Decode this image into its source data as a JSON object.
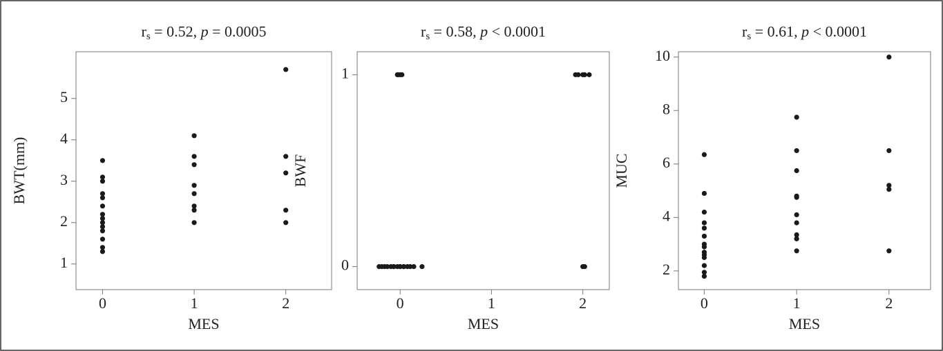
{
  "chart_data": [
    {
      "type": "scatter",
      "title": [
        "r",
        "s",
        " = 0.52, ",
        "p",
        " = 0.0005"
      ],
      "xlabel": "MES",
      "ylabel": "BWT(mm)",
      "color": "#1a1a1a",
      "x": [
        0,
        0,
        0,
        0,
        0,
        0,
        0,
        0,
        0,
        0,
        0,
        0,
        0,
        0,
        1,
        1,
        1,
        1,
        1,
        1,
        1,
        1,
        2,
        2,
        2,
        2,
        2
      ],
      "y": [
        3.5,
        3.1,
        3.0,
        2.7,
        2.6,
        2.4,
        2.2,
        2.1,
        2.0,
        1.9,
        1.8,
        1.6,
        1.4,
        1.3,
        4.1,
        3.6,
        3.4,
        2.9,
        2.7,
        2.4,
        2.3,
        2.0,
        5.7,
        3.6,
        3.2,
        2.3,
        2.0
      ],
      "xlim": [
        -0.29,
        2.5
      ],
      "ylim": [
        0.38,
        6.13
      ],
      "xticks": [
        0,
        1,
        2
      ],
      "yticks": [
        1,
        2,
        3,
        4,
        5
      ]
    },
    {
      "type": "scatter",
      "title": [
        "r",
        "s",
        " = 0.58, ",
        "p",
        " < 0.0001"
      ],
      "xlabel": "MES",
      "ylabel": "BWF",
      "color": "#1a1a1a",
      "x": [
        -0.23,
        -0.2,
        -0.17,
        -0.14,
        -0.1,
        -0.07,
        0,
        0.04,
        0.08,
        0.11,
        0.15,
        0.24,
        -0.02,
        -0.03,
        0,
        0.02,
        -0.07,
        -0.03,
        0,
        0.04,
        1.92,
        1.95,
        2.0,
        2.02,
        2.07,
        2.0,
        2.02
      ],
      "y": [
        0,
        0,
        0,
        0,
        0,
        0,
        0,
        0,
        0,
        0,
        0,
        0,
        1,
        1,
        1,
        1,
        0,
        0,
        0,
        0,
        1,
        1,
        1,
        1,
        1,
        0,
        0
      ],
      "xlim": [
        -0.47,
        2.29
      ],
      "ylim": [
        -0.12,
        1.12
      ],
      "xticks": [
        0,
        1,
        2
      ],
      "yticks": [
        0,
        1
      ]
    },
    {
      "type": "scatter",
      "title": [
        "r",
        "s",
        " = 0.61, ",
        "p",
        " < 0.0001"
      ],
      "xlabel": "MES",
      "ylabel": "MUC",
      "color": "#1a1a1a",
      "x": [
        0,
        0,
        0,
        0,
        0,
        0,
        0,
        0,
        0,
        0,
        0,
        0,
        0,
        0,
        1,
        1,
        1,
        1,
        1,
        1,
        1,
        1,
        1,
        1,
        2,
        2,
        2,
        2,
        2
      ],
      "y": [
        6.35,
        4.9,
        4.2,
        3.8,
        3.6,
        3.3,
        3.0,
        2.9,
        2.7,
        2.6,
        2.5,
        2.2,
        1.95,
        1.8,
        7.75,
        6.5,
        5.75,
        4.8,
        4.75,
        4.1,
        3.8,
        3.35,
        3.2,
        2.75,
        10,
        6.5,
        5.2,
        5.05,
        2.75
      ],
      "xlim": [
        -0.28,
        2.45
      ],
      "ylim": [
        1.3,
        10.2
      ],
      "xticks": [
        0,
        1,
        2
      ],
      "yticks": [
        2,
        4,
        6,
        8,
        10
      ]
    }
  ]
}
